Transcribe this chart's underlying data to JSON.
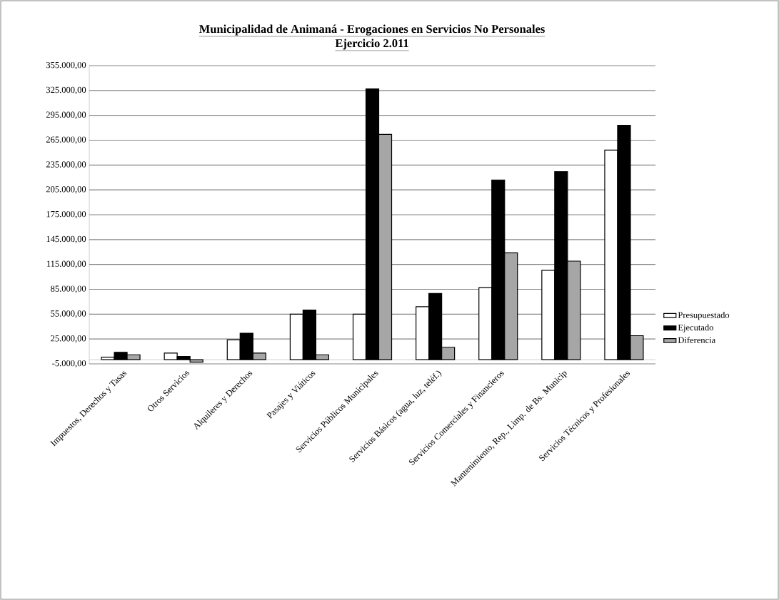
{
  "chart_data": {
    "type": "bar",
    "title": "Municipalidad de Animaná - Erogaciones en Servicios No Personales",
    "subtitle": "Ejercicio 2.011",
    "categories": [
      "Impuestos, Derechos y Tasas",
      "Otros Servicios",
      "Alquileres y Derechos",
      "Pasajes y Viáticos",
      "Servicios Públicos Municipales",
      "Servicios Básicos (agua, luz, teléf.)",
      "Servicios Comerciales y Financieros",
      "Mantenimiento, Rep., Limp. de Bs. Municip",
      "Servicios Técnicos y Profesionales"
    ],
    "series": [
      {
        "name": "Presupuestado",
        "color": "#ffffff",
        "values": [
          3000,
          8000,
          24000,
          55000,
          55000,
          64000,
          87000,
          108000,
          253000
        ]
      },
      {
        "name": "Ejecutado",
        "color": "#000000",
        "values": [
          9000,
          4000,
          32000,
          60000,
          327000,
          80000,
          217000,
          227000,
          283000
        ]
      },
      {
        "name": "Diferencia",
        "color": "#a6a6a6",
        "values": [
          6000,
          -3000,
          8000,
          6000,
          272000,
          15000,
          129000,
          119000,
          29000
        ]
      }
    ],
    "ylim": [
      -5000,
      355000
    ],
    "yticks": [
      {
        "value": -5000,
        "label": "-5.000,00"
      },
      {
        "value": 25000,
        "label": "25.000,00"
      },
      {
        "value": 55000,
        "label": "55.000,00"
      },
      {
        "value": 85000,
        "label": "85.000,00"
      },
      {
        "value": 115000,
        "label": "115.000,00"
      },
      {
        "value": 145000,
        "label": "145.000,00"
      },
      {
        "value": 175000,
        "label": "175.000,00"
      },
      {
        "value": 205000,
        "label": "205.000,00"
      },
      {
        "value": 235000,
        "label": "235.000,00"
      },
      {
        "value": 265000,
        "label": "265.000,00"
      },
      {
        "value": 295000,
        "label": "295.000,00"
      },
      {
        "value": 325000,
        "label": "325.000,00"
      },
      {
        "value": 355000,
        "label": "355.000,00"
      }
    ],
    "grid": "y",
    "legend": "right"
  }
}
